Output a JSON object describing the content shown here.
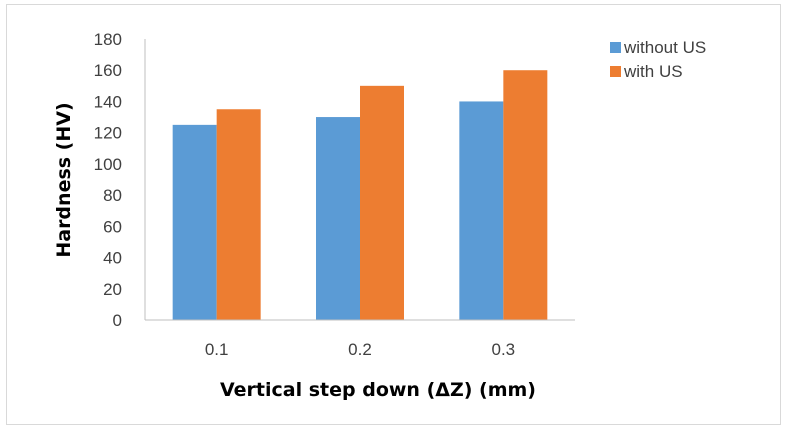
{
  "chart_data": {
    "type": "bar",
    "categories": [
      "0.1",
      "0.2",
      "0.3"
    ],
    "series": [
      {
        "name": "without US",
        "values": [
          125,
          130,
          140
        ],
        "color": "#5b9bd5"
      },
      {
        "name": "with US",
        "values": [
          135,
          150,
          160
        ],
        "color": "#ed7d31"
      }
    ],
    "title": "",
    "xlabel": "Vertical step down (ΔZ) (mm)",
    "ylabel": "Hardness (HV)",
    "ylim": [
      0,
      180
    ],
    "yticks": [
      0,
      20,
      40,
      60,
      80,
      100,
      120,
      140,
      160,
      180
    ],
    "grid": false,
    "legend_position": "top-right"
  }
}
